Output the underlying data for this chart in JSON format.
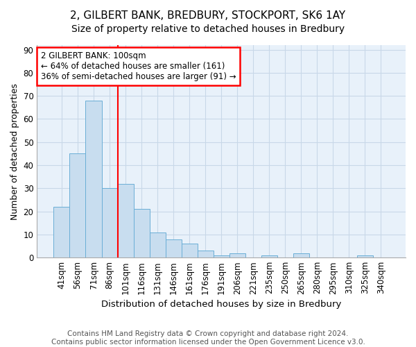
{
  "title1": "2, GILBERT BANK, BREDBURY, STOCKPORT, SK6 1AY",
  "title2": "Size of property relative to detached houses in Bredbury",
  "xlabel": "Distribution of detached houses by size in Bredbury",
  "ylabel": "Number of detached properties",
  "categories": [
    "41sqm",
    "56sqm",
    "71sqm",
    "86sqm",
    "101sqm",
    "116sqm",
    "131sqm",
    "146sqm",
    "161sqm",
    "176sqm",
    "191sqm",
    "206sqm",
    "221sqm",
    "235sqm",
    "250sqm",
    "265sqm",
    "280sqm",
    "295sqm",
    "310sqm",
    "325sqm",
    "340sqm"
  ],
  "values": [
    22,
    45,
    68,
    30,
    32,
    21,
    11,
    8,
    6,
    3,
    1,
    2,
    0,
    1,
    0,
    2,
    0,
    0,
    0,
    1,
    0
  ],
  "bar_color": "#c8ddef",
  "bar_edge_color": "#6aaed6",
  "vline_x_index": 3.5,
  "annotation_text": "2 GILBERT BANK: 100sqm\n← 64% of detached houses are smaller (161)\n36% of semi-detached houses are larger (91) →",
  "annotation_box_color": "white",
  "annotation_box_edge": "red",
  "vline_color": "red",
  "ylim": [
    0,
    92
  ],
  "yticks": [
    0,
    10,
    20,
    30,
    40,
    50,
    60,
    70,
    80,
    90
  ],
  "background_color": "#e8f1fa",
  "grid_color": "#c8d8e8",
  "footer": "Contains HM Land Registry data © Crown copyright and database right 2024.\nContains public sector information licensed under the Open Government Licence v3.0.",
  "footer_fontsize": 7.5,
  "title1_fontsize": 11,
  "title2_fontsize": 10,
  "xlabel_fontsize": 9.5,
  "ylabel_fontsize": 9,
  "tick_fontsize": 8.5
}
